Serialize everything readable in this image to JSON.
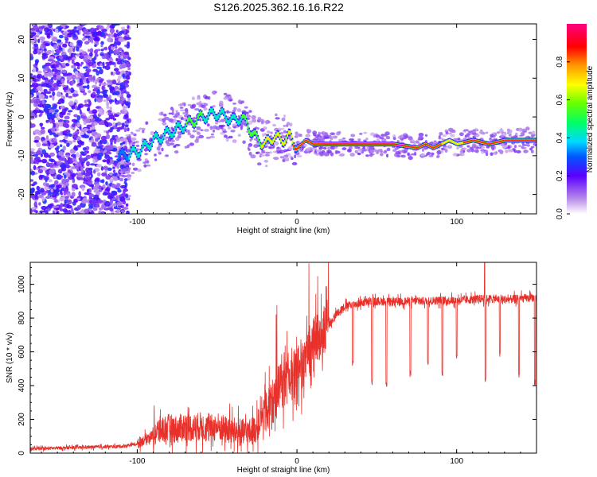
{
  "title": "S126.2025.362.16.16.R22",
  "chart_data": [
    {
      "type": "heatmap",
      "xlabel": "Height of straight line (km)",
      "ylabel": "Frequency (Hz)",
      "xlim": [
        -167,
        150
      ],
      "ylim": [
        -25,
        24
      ],
      "xticks": [
        -100,
        0,
        100
      ],
      "yticks": [
        -20,
        -10,
        0,
        10,
        20
      ],
      "colorbar": {
        "label": "Normalized spectral amplitude",
        "range": [
          0,
          1
        ],
        "ticks": [
          "0.0",
          "0.2",
          "0.4",
          "0.6",
          "0.8"
        ],
        "tick_values": [
          0,
          0.2,
          0.4,
          0.6,
          0.8
        ]
      },
      "ridge": {
        "x": [
          -110,
          -100,
          -90,
          -80,
          -70,
          -60,
          -50,
          -40,
          -35,
          -30,
          -25,
          -20,
          -15,
          -10,
          -5,
          0,
          5,
          10,
          20,
          40,
          60,
          75,
          80,
          85,
          90,
          95,
          100,
          110,
          120,
          130,
          140,
          150
        ],
        "frequency": [
          -10,
          -9,
          -6,
          -4,
          -2,
          0,
          1,
          -1,
          0,
          -3,
          -6,
          -7,
          -5,
          -6,
          -5,
          -8,
          -6,
          -7,
          -7,
          -7,
          -7,
          -8,
          -7,
          -8,
          -7,
          -6,
          -7,
          -6,
          -7,
          -6,
          -6,
          -6
        ],
        "amplitude": [
          0.35,
          0.4,
          0.45,
          0.45,
          0.5,
          0.5,
          0.45,
          0.45,
          0.5,
          0.5,
          0.6,
          0.7,
          0.65,
          0.7,
          0.75,
          0.85,
          0.8,
          0.9,
          1.0,
          1.0,
          1.0,
          0.9,
          0.95,
          0.85,
          0.8,
          0.75,
          0.75,
          0.9,
          0.85,
          0.85,
          0.8,
          0.8
        ]
      }
    },
    {
      "type": "line",
      "xlabel": "Height of straight line (km)",
      "ylabel": "SNR (10 * v/v)",
      "xlim": [
        -167,
        150
      ],
      "ylim": [
        0,
        1130
      ],
      "xticks": [
        -100,
        0,
        100
      ],
      "yticks": [
        0,
        200,
        400,
        600,
        800,
        1000
      ],
      "series": [
        {
          "name": "SNR",
          "color": "#e8312b",
          "x": [
            -167,
            -150,
            -130,
            -110,
            -100,
            -90,
            -85,
            -80,
            -75,
            -70,
            -65,
            -60,
            -55,
            -50,
            -45,
            -40,
            -35,
            -30,
            -25,
            -20,
            -15,
            -10,
            -5,
            0,
            5,
            10,
            15,
            20,
            25,
            30,
            40,
            50,
            60,
            70,
            80,
            90,
            100,
            110,
            115,
            120,
            130,
            140,
            150
          ],
          "values": [
            25,
            30,
            35,
            40,
            55,
            110,
            140,
            150,
            140,
            160,
            150,
            160,
            140,
            160,
            140,
            130,
            120,
            120,
            150,
            250,
            320,
            400,
            450,
            480,
            550,
            650,
            700,
            760,
            830,
            870,
            890,
            900,
            895,
            900,
            900,
            905,
            905,
            910,
            915,
            915,
            910,
            915,
            920
          ]
        }
      ]
    }
  ]
}
